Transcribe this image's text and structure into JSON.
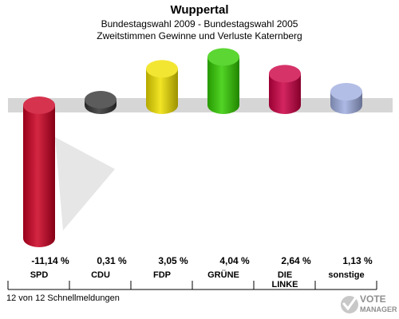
{
  "header": {
    "title": "Wuppertal",
    "subtitle1": "Bundestagswahl 2009 - Bundestagswahl 2005",
    "subtitle2": "Zweitstimmen Gewinne und Verluste Katernberg"
  },
  "footer": {
    "text": "12 von 12 Schnellmeldungen"
  },
  "logo": {
    "line1": "VOTE",
    "line2": "MANAGER"
  },
  "chart_data": {
    "type": "bar",
    "title": "Wuppertal",
    "subtitle": "Bundestagswahl 2009 - Bundestagswahl 2005 / Zweitstimmen Gewinne und Verluste Katernberg",
    "categories": [
      {
        "label": "SPD",
        "label_lines": [
          "SPD"
        ]
      },
      {
        "label": "CDU",
        "label_lines": [
          "CDU"
        ]
      },
      {
        "label": "FDP",
        "label_lines": [
          "FDP"
        ]
      },
      {
        "label": "GRÜNE",
        "label_lines": [
          "GRÜNE"
        ]
      },
      {
        "label": "DIE LINKE",
        "label_lines": [
          "DIE",
          "LINKE"
        ]
      },
      {
        "label": "sonstige",
        "label_lines": [
          "sonstige"
        ]
      }
    ],
    "values": [
      -11.14,
      0.31,
      3.05,
      4.04,
      2.64,
      1.13
    ],
    "value_labels": [
      "-11,14 %",
      "0,31 %",
      "3,05 %",
      "4,04 %",
      "2,64 %",
      "1,13 %"
    ],
    "colors": [
      "#cc0022",
      "#333333",
      "#f0e000",
      "#33cc00",
      "#cc0044",
      "#a0aee0"
    ],
    "ylim": [
      -11.14,
      4.04
    ],
    "grid": false,
    "legend": "none"
  }
}
